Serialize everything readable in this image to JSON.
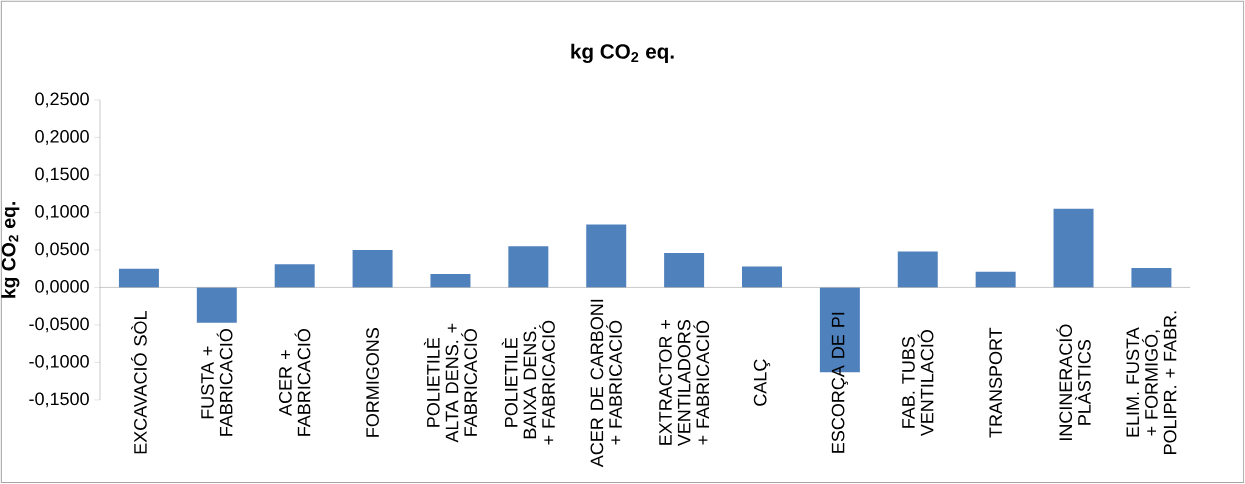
{
  "chart_data": {
    "type": "bar",
    "title": "kg CO$_{2}$ eq.",
    "ylabel": "kg CO$_{2}$ eq.",
    "categories": [
      "EXCAVACIÓ SÒL",
      "FUSTA + FABRICACIÓ",
      "ACER + FABRICACIÓ",
      "FORMIGONS",
      "POLIETILÈ ALTA DENS. + FABRICACIÓ",
      "POLIETILÈ BAIXA DENS. + FABRICACIÓ",
      "ACER DE CARBONI + FABRICACIÓ",
      "EXTRACTOR + VENTILADORS + FABRICACIÓ",
      "CALÇ",
      "ESCORÇA DE PI",
      "FAB. TUBS VENTILACIÓ",
      "TRANSPORT",
      "INCINERACIÓ PLÀSTICS",
      "ELIM. FUSTA + FORMIGÓ, POLIPR. + FABR."
    ],
    "values": [
      0.025,
      -0.047,
      0.031,
      0.05,
      0.018,
      0.055,
      0.084,
      0.046,
      0.028,
      -0.113,
      0.048,
      0.021,
      0.105,
      0.026
    ],
    "color": "#4f81bd",
    "ylim": [
      -0.15,
      0.25
    ],
    "yticks": [
      {
        "value": -0.15,
        "label": "-0,1500"
      },
      {
        "value": -0.1,
        "label": "-0,1000"
      },
      {
        "value": -0.05,
        "label": "-0,0500"
      },
      {
        "value": 0,
        "label": "0,0000"
      },
      {
        "value": 0.05,
        "label": "0,0500"
      },
      {
        "value": 0.1,
        "label": "0,1000"
      },
      {
        "value": 0.15,
        "label": "0,1500"
      },
      {
        "value": 0.2,
        "label": "0,2000"
      },
      {
        "value": 0.25,
        "label": "0,2500"
      }
    ],
    "grid": false
  }
}
